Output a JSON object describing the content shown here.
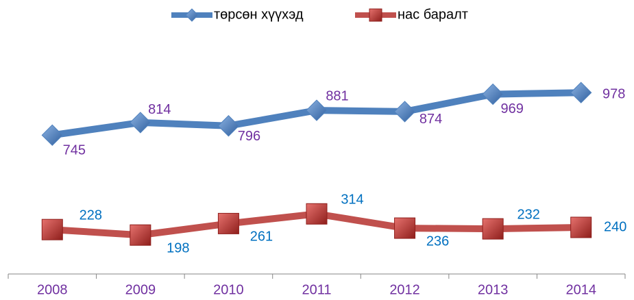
{
  "chart_data": {
    "type": "line",
    "categories": [
      "2008",
      "2009",
      "2010",
      "2011",
      "2012",
      "2013",
      "2014"
    ],
    "series": [
      {
        "name": "төрсөн хүүхэд",
        "color": "#4f81bd",
        "marker": "diamond",
        "label_color": "#7030a0",
        "values": [
          745,
          814,
          796,
          881,
          874,
          969,
          978
        ]
      },
      {
        "name": "нас баралт",
        "color": "#c0504d",
        "marker": "square",
        "label_color": "#0070c0",
        "values": [
          228,
          198,
          261,
          314,
          236,
          232,
          240
        ]
      }
    ],
    "ylim": [
      0,
      1200
    ],
    "legend": "top"
  }
}
